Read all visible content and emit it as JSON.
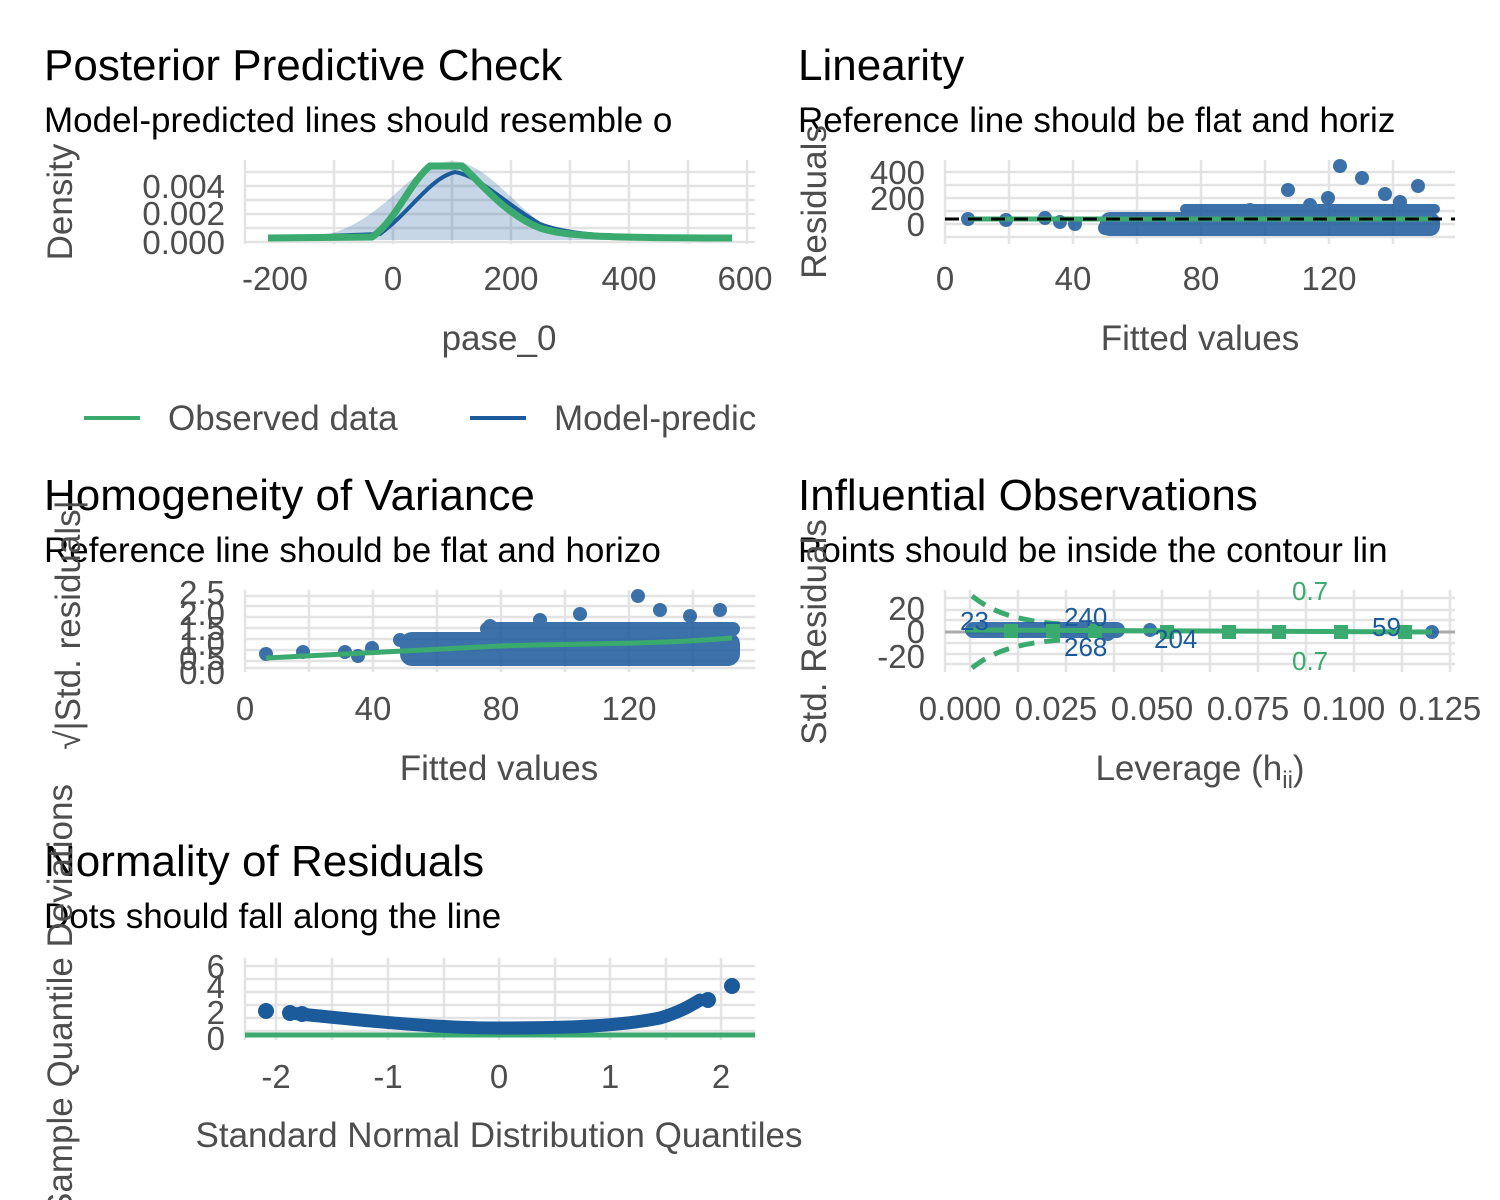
{
  "colors": {
    "observed": "#3aaa6e",
    "predicted": "#1b5a9b",
    "grid": "#e3e3e3",
    "ref": "#000000"
  },
  "chart_data": [
    {
      "id": "ppc",
      "type": "line",
      "title": "Posterior Predictive Check",
      "subtitle": "Model-predicted lines should resemble o",
      "xlabel": "pase_0",
      "ylabel": "Density",
      "xlim": [
        -240,
        600
      ],
      "ylim": [
        0,
        0.0055
      ],
      "x_ticks": [
        "-200",
        "0",
        "200",
        "400",
        "600"
      ],
      "y_ticks": [
        "0.000",
        "0.002",
        "0.004"
      ],
      "legend": [
        "Observed data",
        "Model-predic"
      ],
      "series": [
        {
          "name": "Observed data",
          "x": [
            -210,
            -100,
            -40,
            0,
            40,
            70,
            100,
            140,
            180,
            220,
            260,
            300,
            350,
            400,
            450,
            500,
            575
          ],
          "y": [
            0,
            0,
            0.0001,
            0.0014,
            0.0043,
            0.0055,
            0.0055,
            0.0043,
            0.0026,
            0.0012,
            0.0004,
            0.0001,
            0,
            0,
            0,
            0,
            0
          ]
        },
        {
          "name": "Model-predic",
          "x": [
            -210,
            -100,
            -40,
            0,
            40,
            70,
            100,
            140,
            180,
            220,
            260,
            300,
            350,
            400,
            450,
            500,
            575
          ],
          "y": [
            0,
            0,
            0.0002,
            0.0013,
            0.0035,
            0.0046,
            0.0049,
            0.0042,
            0.0029,
            0.0015,
            0.0006,
            0.0002,
            0,
            0,
            0,
            0,
            0
          ]
        }
      ]
    },
    {
      "id": "lin",
      "type": "scatter",
      "title": "Linearity",
      "subtitle": "Reference line should be flat and horiz",
      "xlabel": "Fitted values",
      "ylabel": "Residuals",
      "xlim": [
        0,
        158
      ],
      "ylim": [
        -100,
        450
      ],
      "x_ticks": [
        "0",
        "40",
        "80",
        "120"
      ],
      "y_ticks": [
        "0",
        "200",
        "400"
      ],
      "reference_y": 0,
      "highlights": [
        [
          125,
          410
        ],
        [
          128,
          370
        ],
        [
          110,
          200
        ],
        [
          130,
          220
        ],
        [
          145,
          230
        ]
      ]
    },
    {
      "id": "hov",
      "type": "scatter",
      "title": "Homogeneity of Variance",
      "subtitle": "Reference line should be flat and horizo",
      "xlabel": "Fitted values",
      "ylabel": "√|Std. residuals|",
      "xlim": [
        0,
        158
      ],
      "ylim": [
        0,
        2.6
      ],
      "x_ticks": [
        "0",
        "40",
        "80",
        "120"
      ],
      "y_ticks": [
        "0.0",
        "0.5",
        "1.0",
        "1.5",
        "2.0",
        "2.5"
      ],
      "smooth": {
        "x": [
          7,
          40,
          80,
          120,
          150
        ],
        "y": [
          0.55,
          0.7,
          0.8,
          0.85,
          1.0
        ]
      }
    },
    {
      "id": "infl",
      "type": "scatter",
      "title": "Influential Observations",
      "subtitle": "Points should be inside the contour lin",
      "xlabel": "Leverage (h",
      "xlabel_sub": "ii",
      "xlabel_end": ")",
      "ylabel": "Std. Residuals",
      "xlim": [
        -0.004,
        0.128
      ],
      "ylim": [
        -30,
        30
      ],
      "x_ticks": [
        "0.000",
        "0.025",
        "0.050",
        "0.075",
        "0.100",
        "0.125"
      ],
      "y_ticks": [
        "-20",
        "0",
        "20"
      ],
      "contour_labels": [
        "0.7",
        "0.7"
      ],
      "point_labels": [
        "23",
        "240",
        "268",
        "204",
        "59"
      ]
    },
    {
      "id": "qq",
      "type": "scatter",
      "title": "Normality of Residuals",
      "subtitle": "Dots should fall along the line",
      "xlabel": "Standard Normal Distribution Quantiles",
      "ylabel": "Sample Quantile Deviations",
      "xlim": [
        -2.25,
        2.3
      ],
      "ylim": [
        0,
        6.5
      ],
      "x_ticks": [
        "-2",
        "-1",
        "0",
        "1",
        "2"
      ],
      "y_ticks": [
        "0",
        "2",
        "4",
        "6"
      ],
      "reference_y": 0
    }
  ]
}
